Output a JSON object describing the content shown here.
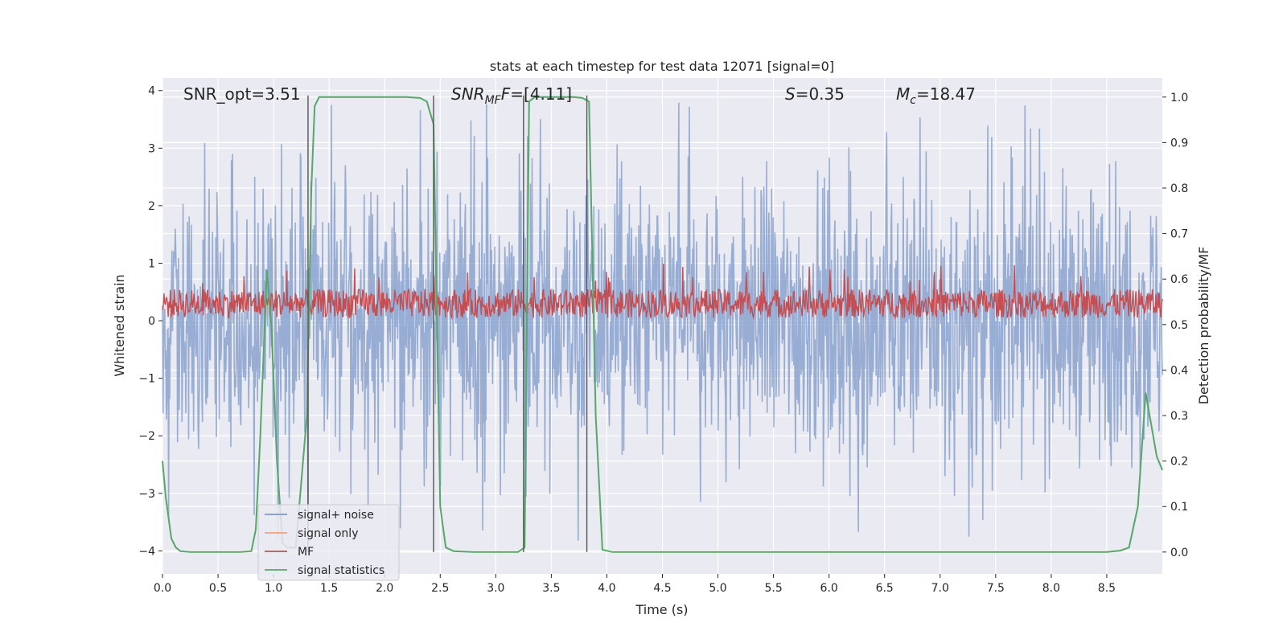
{
  "chart_data": {
    "type": "line",
    "title": "stats at each timestep for test data 12071 [signal=0]",
    "xlabel": "Time (s)",
    "ylabel_left": "Whitened strain",
    "ylabel_right": "Detection probability/MF",
    "xlim": [
      0.0,
      9.0
    ],
    "ylim_left": [
      -4.4,
      4.22
    ],
    "ylim_right": [
      -0.048,
      1.042
    ],
    "x_ticks": [
      "0.0",
      "0.5",
      "1.0",
      "1.5",
      "2.0",
      "2.5",
      "3.0",
      "3.5",
      "4.0",
      "4.5",
      "5.0",
      "5.5",
      "6.0",
      "6.5",
      "7.0",
      "7.5",
      "8.0",
      "8.5"
    ],
    "x_tick_values": [
      0.0,
      0.5,
      1.0,
      1.5,
      2.0,
      2.5,
      3.0,
      3.5,
      4.0,
      4.5,
      5.0,
      5.5,
      6.0,
      6.5,
      7.0,
      7.5,
      8.0,
      8.5
    ],
    "y_left_ticks": [
      "−4",
      "−3",
      "−2",
      "−1",
      "0",
      "1",
      "2",
      "3",
      "4"
    ],
    "y_left_tick_values": [
      -4,
      -3,
      -2,
      -1,
      0,
      1,
      2,
      3,
      4
    ],
    "y_right_ticks": [
      "0.0",
      "0.1",
      "0.2",
      "0.3",
      "0.4",
      "0.5",
      "0.6",
      "0.7",
      "0.8",
      "0.9",
      "1.0"
    ],
    "y_right_tick_values": [
      0.0,
      0.1,
      0.2,
      0.3,
      0.4,
      0.5,
      0.6,
      0.7,
      0.8,
      0.9,
      1.0
    ],
    "grid": true,
    "legend_position": "lower-left",
    "annotations": {
      "snr_opt": "SNR_opt=3.51",
      "snr_mf_main": "SNR",
      "snr_mf_sub": "MF",
      "snr_mf_rest": "F=[4.11]",
      "s_symbol": "S",
      "s_value": "=0.35",
      "mc_symbol": "M",
      "mc_sub": "c",
      "mc_value": "=18.47"
    },
    "vertical_markers": [
      1.31,
      2.44,
      3.25,
      3.82
    ],
    "series": [
      {
        "name": "signal+ noise",
        "color": "#7c98c8",
        "axis": "left",
        "noise_band_positive": 2.2,
        "noise_band_negative": -1.9,
        "peak_max": 3.9,
        "peak_min": -4.0
      },
      {
        "name": "signal only",
        "color": "#f0a080",
        "axis": "left",
        "values": []
      },
      {
        "name": "MF",
        "color": "#c44e52",
        "axis": "left",
        "center": 0.3,
        "amplitude": 0.25,
        "peak_max": 1.0
      },
      {
        "name": "signal statistics",
        "color": "#55a868",
        "axis": "right",
        "x": [
          0.0,
          0.03,
          0.08,
          0.12,
          0.16,
          0.25,
          0.5,
          0.7,
          0.8,
          0.84,
          0.88,
          0.94,
          0.98,
          1.03,
          1.08,
          1.12,
          1.2,
          1.3,
          1.34,
          1.37,
          1.41,
          1.45,
          1.5,
          1.6,
          1.8,
          2.0,
          2.2,
          2.32,
          2.38,
          2.44,
          2.5,
          2.55,
          2.62,
          2.8,
          3.0,
          3.2,
          3.26,
          3.3,
          3.35,
          3.42,
          3.55,
          3.7,
          3.78,
          3.84,
          3.9,
          3.96,
          4.05,
          4.5,
          5.0,
          5.5,
          6.0,
          6.5,
          7.0,
          7.5,
          8.0,
          8.5,
          8.62,
          8.7,
          8.78,
          8.85,
          8.9,
          8.95,
          9.0
        ],
        "y": [
          0.2,
          0.12,
          0.03,
          0.01,
          0.002,
          0.0,
          0.0,
          0.0,
          0.002,
          0.05,
          0.25,
          0.62,
          0.5,
          0.2,
          0.02,
          0.01,
          0.01,
          0.3,
          0.8,
          0.98,
          1.0,
          1.0,
          1.0,
          1.0,
          1.0,
          1.0,
          1.0,
          0.998,
          0.99,
          0.94,
          0.1,
          0.01,
          0.002,
          0.0,
          0.0,
          0.0,
          0.01,
          0.99,
          1.0,
          1.0,
          1.0,
          1.0,
          0.998,
          0.99,
          0.3,
          0.005,
          0.0,
          0.0,
          0.0,
          0.0,
          0.0,
          0.0,
          0.0,
          0.0,
          0.0,
          0.0,
          0.003,
          0.01,
          0.1,
          0.35,
          0.28,
          0.21,
          0.18
        ]
      }
    ]
  }
}
